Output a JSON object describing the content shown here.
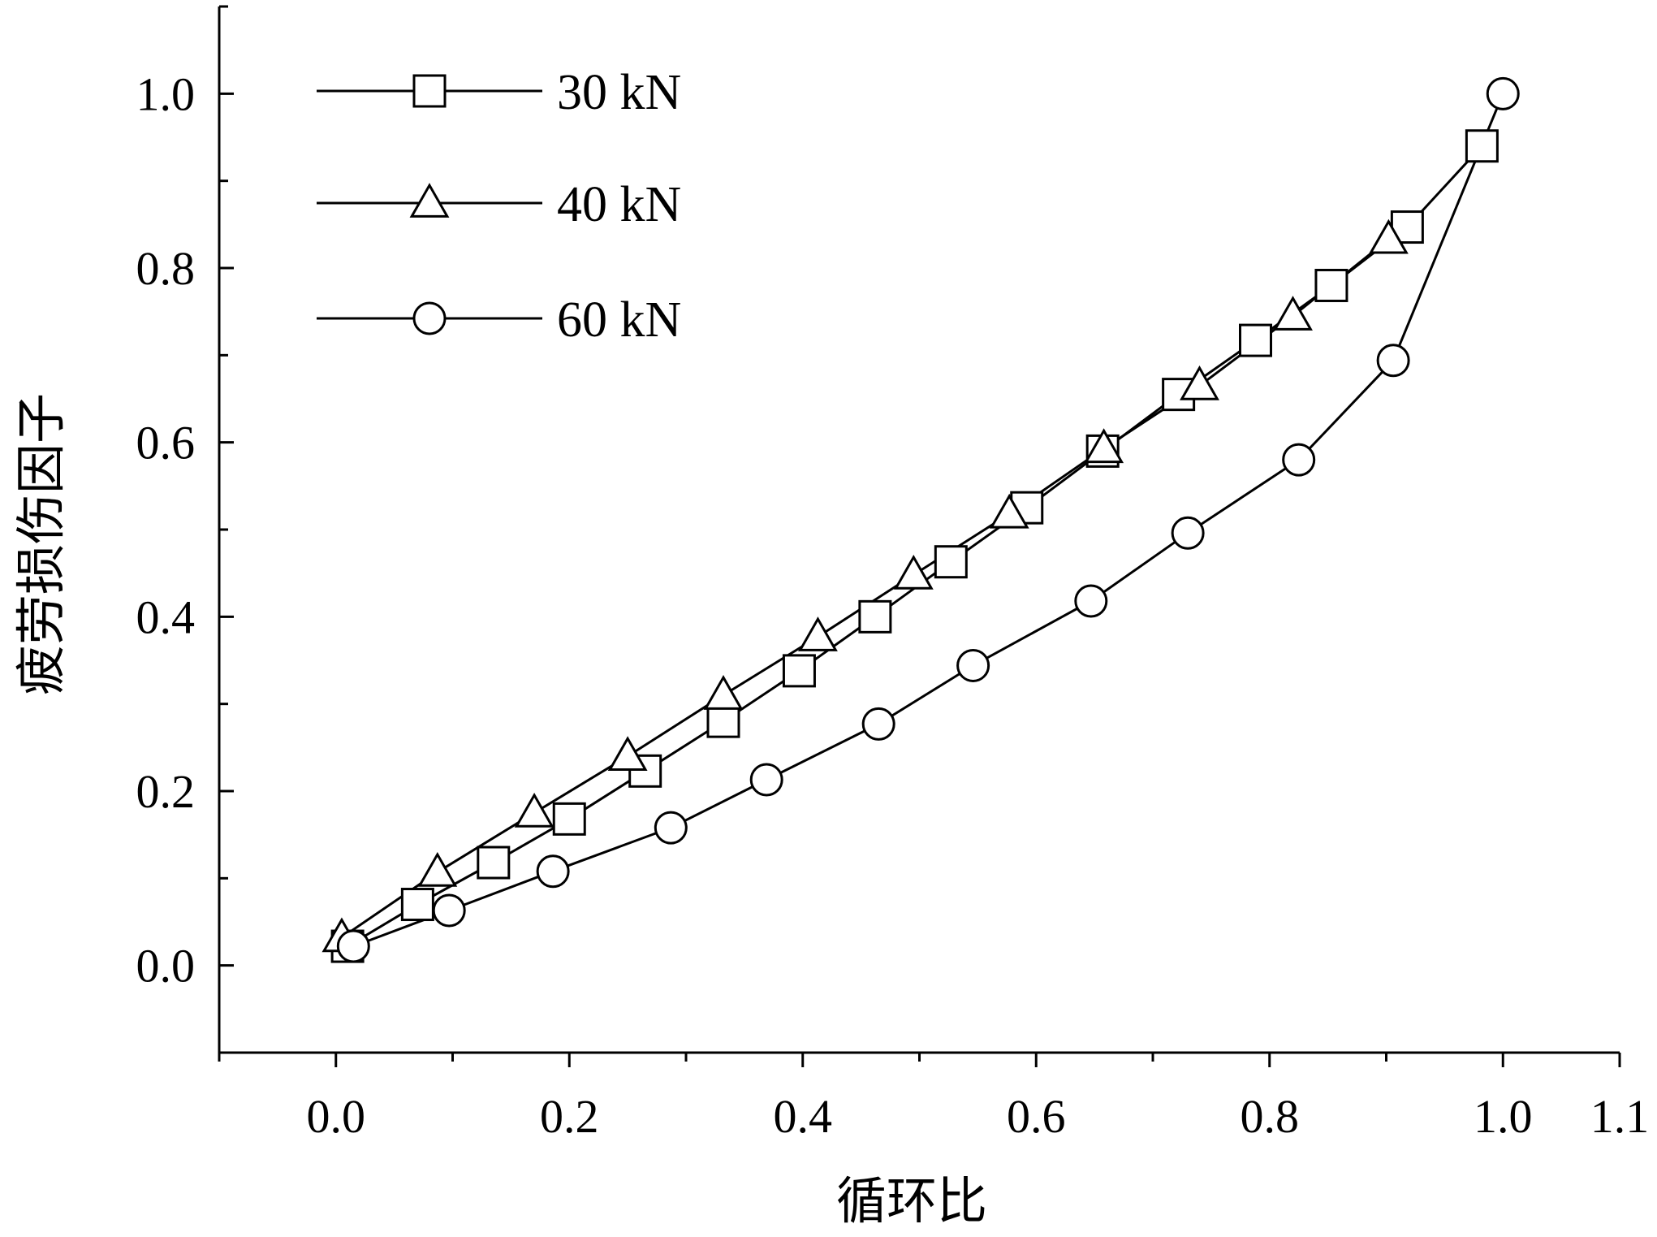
{
  "chart_data": {
    "type": "line",
    "xlabel": "循环比",
    "ylabel": "疲劳损伤因子",
    "xlim": [
      -0.1,
      1.1
    ],
    "ylim": [
      -0.1,
      1.1
    ],
    "xticks": [
      0.0,
      0.2,
      0.4,
      0.6,
      0.8,
      1.0,
      1.1
    ],
    "xtick_labels": [
      "0.0",
      "0.2",
      "0.4",
      "0.6",
      "0.8",
      "1.0",
      "1.1"
    ],
    "yticks": [
      0.0,
      0.2,
      0.4,
      0.6,
      0.8,
      1.0
    ],
    "ytick_labels": [
      "0.0",
      "0.2",
      "0.4",
      "0.6",
      "0.8",
      "1.0"
    ],
    "grid": false,
    "legend_position": "top-left",
    "series": [
      {
        "name": "30 kN",
        "marker": "square",
        "x": [
          0.01,
          0.07,
          0.135,
          0.2,
          0.265,
          0.332,
          0.397,
          0.462,
          0.527,
          0.592,
          0.657,
          0.722,
          0.788,
          0.853,
          0.918,
          0.982
        ],
        "y": [
          0.022,
          0.07,
          0.118,
          0.168,
          0.223,
          0.28,
          0.338,
          0.4,
          0.463,
          0.525,
          0.59,
          0.655,
          0.717,
          0.78,
          0.847,
          0.94
        ]
      },
      {
        "name": "40 kN",
        "marker": "triangle",
        "x": [
          0.005,
          0.087,
          0.17,
          0.25,
          0.332,
          0.413,
          0.495,
          0.577,
          0.658,
          0.74,
          0.82,
          0.902
        ],
        "y": [
          0.032,
          0.107,
          0.175,
          0.24,
          0.31,
          0.377,
          0.448,
          0.518,
          0.593,
          0.665,
          0.745,
          0.833
        ]
      },
      {
        "name": "60 kN",
        "marker": "circle",
        "x": [
          0.015,
          0.097,
          0.186,
          0.287,
          0.369,
          0.465,
          0.546,
          0.647,
          0.73,
          0.825,
          0.906,
          1.0
        ],
        "y": [
          0.022,
          0.063,
          0.108,
          0.158,
          0.213,
          0.277,
          0.344,
          0.418,
          0.496,
          0.58,
          0.694,
          1.0
        ]
      }
    ]
  }
}
